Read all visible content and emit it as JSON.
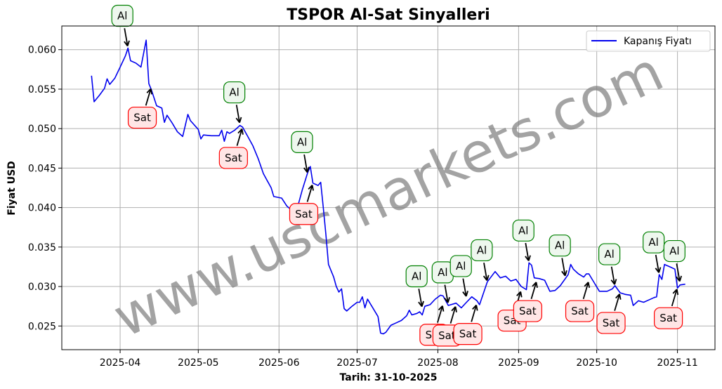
{
  "chart_data": {
    "type": "line",
    "title": "TSPOR Al-Sat Sinyalleri",
    "xlabel": "Tarih: 31-10-2025",
    "ylabel": "Fiyat USD",
    "ylim": [
      0.022,
      0.063
    ],
    "y_ticks": [
      "0.025",
      "0.030",
      "0.035",
      "0.040",
      "0.045",
      "0.050",
      "0.055",
      "0.060"
    ],
    "x_ticks": [
      "2025-04",
      "2025-05",
      "2025-06",
      "2025-07",
      "2025-08",
      "2025-09",
      "2025-10",
      "2025-11"
    ],
    "grid": true,
    "legend_position": "top-right",
    "colors": {
      "line": "#0000ee",
      "buy_edge": "#008000",
      "buy_face": "#eef7ee",
      "sell_edge": "#ff0000",
      "sell_face": "#ffe6e6"
    },
    "series": [
      {
        "name": "Kapanış Fiyatı",
        "points": [
          [
            "2025-03-21",
            0.0567
          ],
          [
            "2025-03-22",
            0.0534
          ],
          [
            "2025-03-24",
            0.0542
          ],
          [
            "2025-03-26",
            0.0551
          ],
          [
            "2025-03-27",
            0.0563
          ],
          [
            "2025-03-28",
            0.0556
          ],
          [
            "2025-03-30",
            0.0564
          ],
          [
            "2025-04-01",
            0.0578
          ],
          [
            "2025-04-03",
            0.0592
          ],
          [
            "2025-04-04",
            0.0602
          ],
          [
            "2025-04-05",
            0.0586
          ],
          [
            "2025-04-07",
            0.0583
          ],
          [
            "2025-04-09",
            0.0578
          ],
          [
            "2025-04-11",
            0.0612
          ],
          [
            "2025-04-12",
            0.0557
          ],
          [
            "2025-04-13",
            0.0549
          ],
          [
            "2025-04-15",
            0.0529
          ],
          [
            "2025-04-17",
            0.0526
          ],
          [
            "2025-04-18",
            0.0508
          ],
          [
            "2025-04-19",
            0.0517
          ],
          [
            "2025-04-21",
            0.0507
          ],
          [
            "2025-04-23",
            0.0496
          ],
          [
            "2025-04-25",
            0.049
          ],
          [
            "2025-04-27",
            0.0518
          ],
          [
            "2025-04-28",
            0.051
          ],
          [
            "2025-05-01",
            0.0499
          ],
          [
            "2025-05-02",
            0.0487
          ],
          [
            "2025-05-03",
            0.0492
          ],
          [
            "2025-05-06",
            0.0491
          ],
          [
            "2025-05-09",
            0.0491
          ],
          [
            "2025-05-10",
            0.0498
          ],
          [
            "2025-05-11",
            0.0484
          ],
          [
            "2025-05-12",
            0.0496
          ],
          [
            "2025-05-13",
            0.0494
          ],
          [
            "2025-05-15",
            0.0498
          ],
          [
            "2025-05-17",
            0.0504
          ],
          [
            "2025-05-18",
            0.0502
          ],
          [
            "2025-05-20",
            0.049
          ],
          [
            "2025-05-22",
            0.0478
          ],
          [
            "2025-05-24",
            0.0462
          ],
          [
            "2025-05-26",
            0.0443
          ],
          [
            "2025-05-29",
            0.0425
          ],
          [
            "2025-05-30",
            0.0414
          ],
          [
            "2025-06-02",
            0.0412
          ],
          [
            "2025-06-04",
            0.0402
          ],
          [
            "2025-06-05",
            0.0399
          ],
          [
            "2025-06-07",
            0.04
          ],
          [
            "2025-06-08",
            0.0399
          ],
          [
            "2025-06-10",
            0.0423
          ],
          [
            "2025-06-12",
            0.0444
          ],
          [
            "2025-06-13",
            0.0452
          ],
          [
            "2025-06-14",
            0.0431
          ],
          [
            "2025-06-16",
            0.0428
          ],
          [
            "2025-06-17",
            0.0432
          ],
          [
            "2025-06-18",
            0.04
          ],
          [
            "2025-06-19",
            0.0366
          ],
          [
            "2025-06-20",
            0.0328
          ],
          [
            "2025-06-22",
            0.0312
          ],
          [
            "2025-06-23",
            0.03
          ],
          [
            "2025-06-24",
            0.0293
          ],
          [
            "2025-06-25",
            0.0297
          ],
          [
            "2025-06-26",
            0.0272
          ],
          [
            "2025-06-27",
            0.0269
          ],
          [
            "2025-06-29",
            0.0275
          ],
          [
            "2025-07-01",
            0.028
          ],
          [
            "2025-07-02",
            0.028
          ],
          [
            "2025-07-03",
            0.0287
          ],
          [
            "2025-07-04",
            0.0273
          ],
          [
            "2025-07-05",
            0.0284
          ],
          [
            "2025-07-07",
            0.0273
          ],
          [
            "2025-07-09",
            0.0262
          ],
          [
            "2025-07-10",
            0.0241
          ],
          [
            "2025-07-11",
            0.024
          ],
          [
            "2025-07-12",
            0.0242
          ],
          [
            "2025-07-14",
            0.0251
          ],
          [
            "2025-07-16",
            0.0254
          ],
          [
            "2025-07-18",
            0.0257
          ],
          [
            "2025-07-20",
            0.0263
          ],
          [
            "2025-07-21",
            0.027
          ],
          [
            "2025-07-22",
            0.0264
          ],
          [
            "2025-07-24",
            0.0266
          ],
          [
            "2025-07-25",
            0.0268
          ],
          [
            "2025-07-26",
            0.0264
          ],
          [
            "2025-07-27",
            0.0275
          ],
          [
            "2025-07-29",
            0.0277
          ],
          [
            "2025-07-31",
            0.0284
          ],
          [
            "2025-08-02",
            0.0289
          ],
          [
            "2025-08-03",
            0.0288
          ],
          [
            "2025-08-05",
            0.0276
          ],
          [
            "2025-08-08",
            0.0279
          ],
          [
            "2025-08-10",
            0.0273
          ],
          [
            "2025-08-12",
            0.028
          ],
          [
            "2025-08-14",
            0.0287
          ],
          [
            "2025-08-16",
            0.0282
          ],
          [
            "2025-08-17",
            0.0277
          ],
          [
            "2025-08-20",
            0.0306
          ],
          [
            "2025-08-23",
            0.0319
          ],
          [
            "2025-08-25",
            0.0311
          ],
          [
            "2025-08-27",
            0.0313
          ],
          [
            "2025-08-29",
            0.0307
          ],
          [
            "2025-08-31",
            0.0309
          ],
          [
            "2025-09-02",
            0.03
          ],
          [
            "2025-09-04",
            0.0296
          ],
          [
            "2025-09-05",
            0.033
          ],
          [
            "2025-09-06",
            0.0327
          ],
          [
            "2025-09-07",
            0.0311
          ],
          [
            "2025-09-09",
            0.031
          ],
          [
            "2025-09-11",
            0.0308
          ],
          [
            "2025-09-13",
            0.0294
          ],
          [
            "2025-09-15",
            0.0295
          ],
          [
            "2025-09-17",
            0.0301
          ],
          [
            "2025-09-20",
            0.0315
          ],
          [
            "2025-09-21",
            0.0328
          ],
          [
            "2025-09-22",
            0.0322
          ],
          [
            "2025-09-24",
            0.0316
          ],
          [
            "2025-09-26",
            0.0312
          ],
          [
            "2025-09-27",
            0.0316
          ],
          [
            "2025-09-28",
            0.0316
          ],
          [
            "2025-09-30",
            0.0305
          ],
          [
            "2025-10-02",
            0.0294
          ],
          [
            "2025-10-05",
            0.0294
          ],
          [
            "2025-10-07",
            0.0297
          ],
          [
            "2025-10-08",
            0.0301
          ],
          [
            "2025-10-10",
            0.0292
          ],
          [
            "2025-10-12",
            0.029
          ],
          [
            "2025-10-14",
            0.0289
          ],
          [
            "2025-10-15",
            0.0276
          ],
          [
            "2025-10-17",
            0.0282
          ],
          [
            "2025-10-19",
            0.028
          ],
          [
            "2025-10-21",
            0.0283
          ],
          [
            "2025-10-23",
            0.0286
          ],
          [
            "2025-10-24",
            0.0287
          ],
          [
            "2025-10-25",
            0.0315
          ],
          [
            "2025-10-26",
            0.0309
          ],
          [
            "2025-10-27",
            0.0328
          ],
          [
            "2025-10-29",
            0.0325
          ],
          [
            "2025-10-31",
            0.0322
          ],
          [
            "2025-11-01",
            0.0298
          ],
          [
            "2025-11-02",
            0.0302
          ],
          [
            "2025-11-04",
            0.0303
          ]
        ]
      }
    ],
    "signals": [
      {
        "type": "buy",
        "label": "Al",
        "date": "2025-04-04",
        "price": 0.0602
      },
      {
        "type": "sell",
        "label": "Sat",
        "date": "2025-04-13",
        "price": 0.0553
      },
      {
        "type": "buy",
        "label": "Al",
        "date": "2025-05-17",
        "price": 0.0505
      },
      {
        "type": "sell",
        "label": "Sat",
        "date": "2025-05-18",
        "price": 0.0502
      },
      {
        "type": "buy",
        "label": "Al",
        "date": "2025-06-12",
        "price": 0.0442
      },
      {
        "type": "sell",
        "label": "Sat",
        "date": "2025-06-14",
        "price": 0.0431
      },
      {
        "type": "buy",
        "label": "Al",
        "date": "2025-07-26",
        "price": 0.0272
      },
      {
        "type": "sell",
        "label": "Sat",
        "date": "2025-08-03",
        "price": 0.0278
      },
      {
        "type": "buy",
        "label": "Al",
        "date": "2025-08-05",
        "price": 0.0277
      },
      {
        "type": "sell",
        "label": "Sat",
        "date": "2025-08-08",
        "price": 0.0277
      },
      {
        "type": "buy",
        "label": "Al",
        "date": "2025-08-12",
        "price": 0.0285
      },
      {
        "type": "sell",
        "label": "Sat",
        "date": "2025-08-16",
        "price": 0.0279
      },
      {
        "type": "buy",
        "label": "Al",
        "date": "2025-08-20",
        "price": 0.0305
      },
      {
        "type": "sell",
        "label": "Sat",
        "date": "2025-09-02",
        "price": 0.0296
      },
      {
        "type": "buy",
        "label": "Al",
        "date": "2025-09-05",
        "price": 0.033
      },
      {
        "type": "sell",
        "label": "Sat",
        "date": "2025-09-08",
        "price": 0.0308
      },
      {
        "type": "buy",
        "label": "Al",
        "date": "2025-09-19",
        "price": 0.0311
      },
      {
        "type": "sell",
        "label": "Sat",
        "date": "2025-09-28",
        "price": 0.0308
      },
      {
        "type": "buy",
        "label": "Al",
        "date": "2025-10-08",
        "price": 0.03
      },
      {
        "type": "sell",
        "label": "Sat",
        "date": "2025-10-10",
        "price": 0.0293
      },
      {
        "type": "buy",
        "label": "Al",
        "date": "2025-10-25",
        "price": 0.0315
      },
      {
        "type": "buy",
        "label": "Al",
        "date": "2025-11-02",
        "price": 0.0304
      },
      {
        "type": "sell",
        "label": "Sat",
        "date": "2025-11-01",
        "price": 0.0299
      }
    ],
    "watermark": "www.uscmarkets.com"
  }
}
